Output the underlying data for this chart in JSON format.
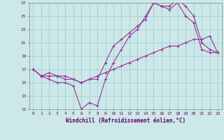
{
  "xlabel": "Windchill (Refroidissement éolien,°C)",
  "background_color": "#cce8e8",
  "grid_color": "#99cccc",
  "line_color": "#993399",
  "xlim": [
    -0.5,
    23.5
  ],
  "ylim": [
    11,
    27
  ],
  "yticks": [
    11,
    13,
    15,
    17,
    19,
    21,
    23,
    25,
    27
  ],
  "xticks": [
    0,
    1,
    2,
    3,
    4,
    5,
    6,
    7,
    8,
    9,
    10,
    11,
    12,
    13,
    14,
    15,
    16,
    17,
    18,
    19,
    20,
    21,
    22,
    23
  ],
  "line1_x": [
    0,
    1,
    2,
    3,
    4,
    5,
    6,
    7,
    8,
    9,
    10,
    11,
    12,
    13,
    14,
    15,
    16,
    17,
    18,
    19,
    20,
    21,
    22,
    23
  ],
  "line1_y": [
    17,
    16,
    15.5,
    15,
    15,
    14.5,
    11,
    12,
    11.5,
    15.5,
    18,
    20,
    22,
    23,
    25,
    27,
    26.5,
    26,
    27,
    25,
    24,
    20,
    19.5,
    19.5
  ],
  "line2_x": [
    0,
    1,
    2,
    3,
    4,
    5,
    6,
    7,
    8,
    9,
    10,
    11,
    12,
    13,
    14,
    15,
    16,
    17,
    18,
    19,
    20,
    21,
    22,
    23
  ],
  "line2_y": [
    17,
    16,
    16.5,
    16,
    16,
    15.5,
    15,
    15.5,
    15.5,
    18,
    20.5,
    21.5,
    22.5,
    23.5,
    24.5,
    27,
    26.5,
    26.5,
    27.5,
    26.5,
    25,
    21,
    20,
    19.5
  ],
  "line3_x": [
    0,
    1,
    2,
    3,
    4,
    5,
    6,
    7,
    8,
    9,
    10,
    11,
    12,
    13,
    14,
    15,
    16,
    17,
    18,
    19,
    20,
    21,
    22,
    23
  ],
  "line3_y": [
    17,
    16,
    16,
    16,
    15.5,
    15.5,
    15,
    15.5,
    16,
    16.5,
    17,
    17.5,
    18,
    18.5,
    19,
    19.5,
    20,
    20.5,
    20.5,
    21,
    21.5,
    21.5,
    22,
    19.5
  ],
  "marker": "+",
  "markersize": 3.5,
  "linewidth": 0.8
}
